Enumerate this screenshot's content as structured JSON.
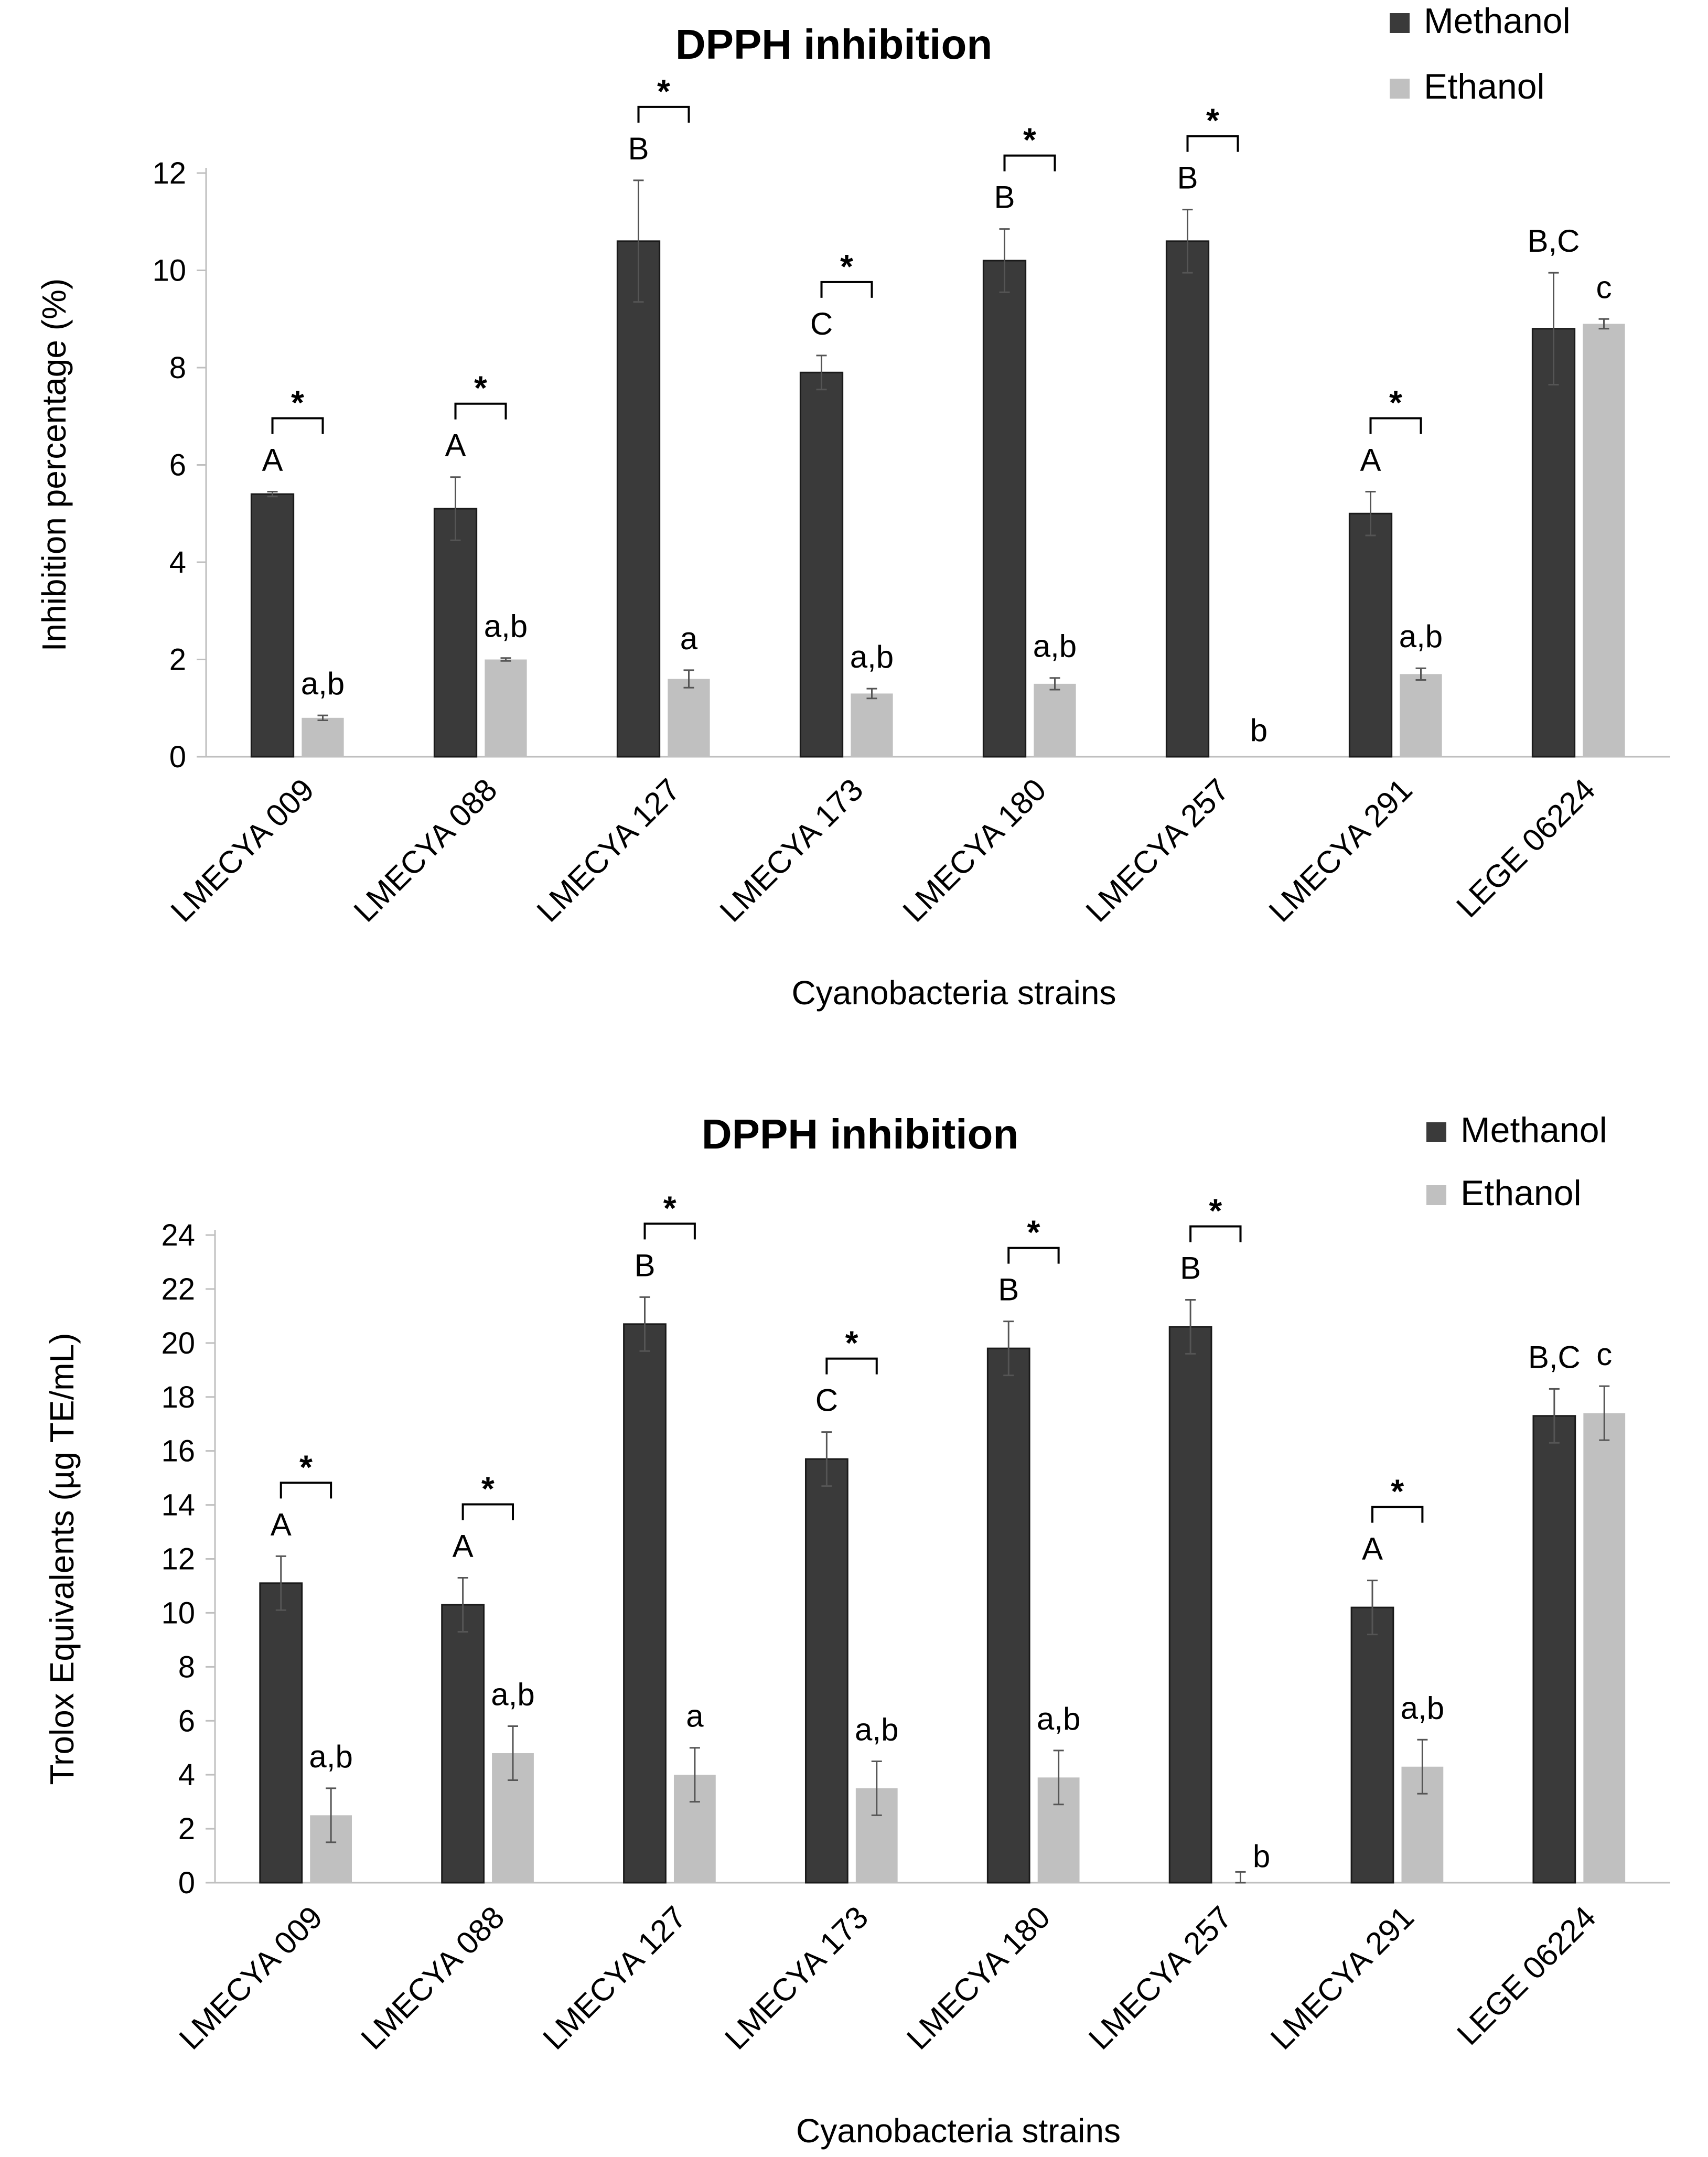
{
  "chart_data": [
    {
      "type": "bar",
      "title": "DPPH inhibition",
      "xlabel": "Cyanobacteria strains",
      "ylabel": "Inhibition percentage (%)",
      "ylim": [
        0,
        12
      ],
      "yticks": [
        0,
        2,
        4,
        6,
        8,
        10,
        12
      ],
      "ytick_labels": [
        "0",
        "2",
        "4",
        "6",
        "8",
        "10",
        "12"
      ],
      "legend_position": "top-right",
      "categories": [
        "LMECYA 009",
        "LMECYA 088",
        "LMECYA 127",
        "LMECYA 173",
        "LMECYA 180",
        "LMECYA 257",
        "LMECYA 291",
        "LEGE 06224"
      ],
      "series": [
        {
          "name": "Methanol",
          "color": "#3a3a3a",
          "values": [
            5.4,
            5.1,
            10.6,
            7.9,
            10.2,
            10.6,
            5.0,
            8.8
          ],
          "errors": [
            0.05,
            0.65,
            1.25,
            0.35,
            0.65,
            0.65,
            0.45,
            1.15
          ],
          "letters": [
            "A",
            "A",
            "B",
            "C",
            "B",
            "B",
            "A",
            "B,C"
          ]
        },
        {
          "name": "Ethanol",
          "color": "#c0c0c0",
          "values": [
            0.8,
            2.0,
            1.6,
            1.3,
            1.5,
            0.0,
            1.7,
            8.9
          ],
          "errors": [
            0.05,
            0.03,
            0.18,
            0.1,
            0.12,
            0.0,
            0.12,
            0.1
          ],
          "letters": [
            "a,b",
            "a,b",
            "a",
            "a,b",
            "a,b",
            "b",
            "a,b",
            "c"
          ]
        }
      ],
      "significance_marker": "*",
      "significant": [
        true,
        true,
        true,
        true,
        true,
        true,
        true,
        false
      ]
    },
    {
      "type": "bar",
      "title": "DPPH inhibition",
      "xlabel": "Cyanobacteria strains",
      "ylabel": "Trolox Equivalents (µg TE/mL)",
      "ylim": [
        0,
        24
      ],
      "yticks": [
        0,
        2,
        4,
        6,
        8,
        10,
        12,
        14,
        16,
        18,
        20,
        22,
        24
      ],
      "ytick_labels": [
        "0",
        "2",
        "4",
        "6",
        "8",
        "10",
        "12",
        "14",
        "16",
        "18",
        "20",
        "22",
        "24"
      ],
      "legend_position": "top-right",
      "categories": [
        "LMECYA 009",
        "LMECYA 088",
        "LMECYA 127",
        "LMECYA 173",
        "LMECYA 180",
        "LMECYA 257",
        "LMECYA 291",
        "LEGE 06224"
      ],
      "series": [
        {
          "name": "Methanol",
          "color": "#3a3a3a",
          "values": [
            11.1,
            10.3,
            20.7,
            15.7,
            19.8,
            20.6,
            10.2,
            17.3
          ],
          "errors": [
            1.0,
            1.0,
            1.0,
            1.0,
            1.0,
            1.0,
            1.0,
            1.0
          ],
          "letters": [
            "A",
            "A",
            "B",
            "C",
            "B",
            "B",
            "A",
            "B,C"
          ]
        },
        {
          "name": "Ethanol",
          "color": "#c0c0c0",
          "values": [
            2.5,
            4.8,
            4.0,
            3.5,
            3.9,
            0.0,
            4.3,
            17.4
          ],
          "errors": [
            1.0,
            1.0,
            1.0,
            1.0,
            1.0,
            0.4,
            1.0,
            1.0
          ],
          "letters": [
            "a,b",
            "a,b",
            "a",
            "a,b",
            "a,b",
            "b",
            "a,b",
            "c"
          ]
        }
      ],
      "significance_marker": "*",
      "significant": [
        true,
        true,
        true,
        true,
        true,
        true,
        true,
        false
      ]
    }
  ]
}
